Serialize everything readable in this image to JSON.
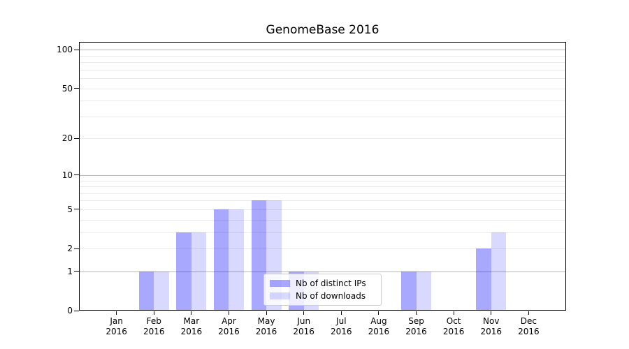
{
  "chart_data": {
    "type": "bar",
    "title": "GenomeBase 2016",
    "categories": [
      "Jan",
      "Feb",
      "Mar",
      "Apr",
      "May",
      "Jun",
      "Jul",
      "Aug",
      "Sep",
      "Oct",
      "Nov",
      "Dec"
    ],
    "category_year": "2016",
    "series": [
      {
        "name": "Nb of distinct IPs",
        "color": "rgba(0,0,255,0.34)",
        "values": [
          0,
          1,
          3,
          5,
          6,
          1,
          0,
          0,
          1,
          0,
          2,
          0
        ]
      },
      {
        "name": "Nb of downloads",
        "color": "rgba(0,0,255,0.15)",
        "values": [
          0,
          1,
          3,
          5,
          6,
          1,
          0,
          0,
          1,
          0,
          3,
          0
        ]
      }
    ],
    "scale": "log1p",
    "ylim": [
      0,
      115
    ],
    "ytick_labels": [
      0,
      1,
      2,
      5,
      10,
      20,
      50,
      100
    ],
    "major_gridlines": [
      1,
      10,
      100
    ],
    "minor_gridlines": [
      2,
      3,
      4,
      5,
      6,
      7,
      8,
      9,
      20,
      30,
      40,
      50,
      60,
      70,
      80,
      90
    ],
    "grid": "on",
    "legend_position": "lower-center",
    "colors": {
      "major_grid": "#b6b6b6",
      "minor_grid": "#e9e9e9",
      "axis": "#000000",
      "text": "#000000",
      "background": "#ffffff"
    }
  }
}
